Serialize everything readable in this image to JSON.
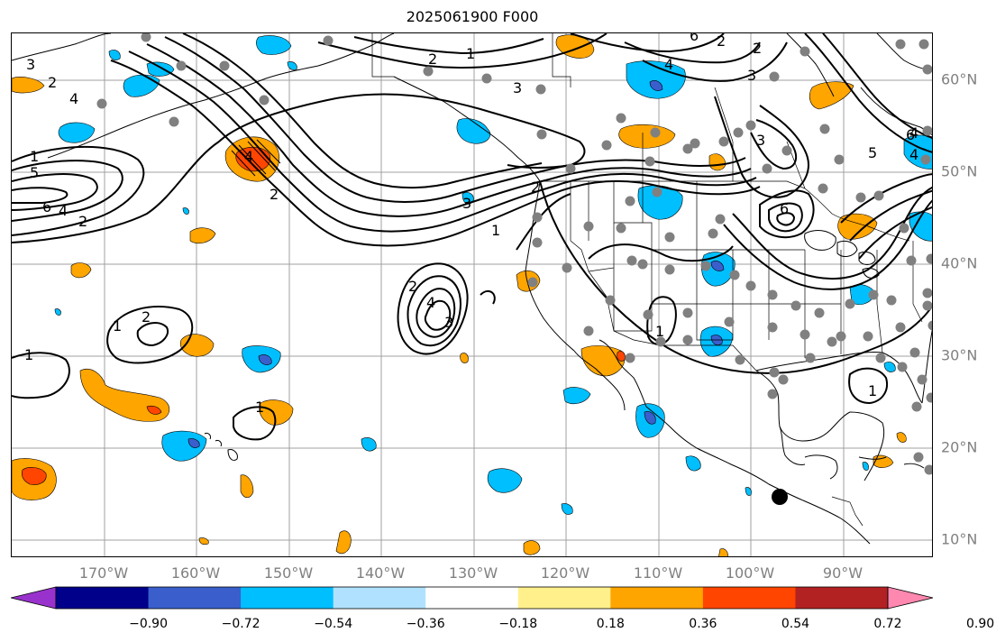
{
  "title": "2025061900 F000",
  "map": {
    "lon_labels": [
      "170°W",
      "160°W",
      "150°W",
      "140°W",
      "130°W",
      "120°W",
      "110°W",
      "100°W",
      "90°W"
    ],
    "lat_labels": [
      "10°N",
      "20°N",
      "30°N",
      "40°N",
      "50°N",
      "60°N"
    ],
    "gridline_color": "#a0a0a0",
    "coastline_color": "#000000",
    "contour_color": "#000000",
    "station_dot_color": "#808080",
    "marker_color": "#000000"
  },
  "contour_labels": [
    "1",
    "2",
    "3",
    "4",
    "5",
    "6"
  ],
  "colorbar": {
    "ticks": [
      "−0.90",
      "−0.72",
      "−0.54",
      "−0.36",
      "−0.18",
      "0.18",
      "0.36",
      "0.54",
      "0.72",
      "0.90"
    ],
    "colors": [
      "#9932cc",
      "#00008b",
      "#3a5fcd",
      "#00bfff",
      "#b0e2ff",
      "#ffffff",
      "#fff08c",
      "#ffa500",
      "#ff4500",
      "#b22222",
      "#ff88b0"
    ]
  }
}
